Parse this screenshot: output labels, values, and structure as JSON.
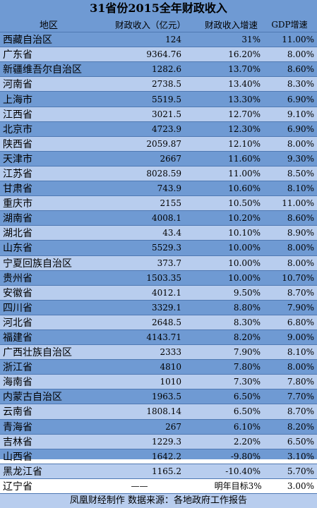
{
  "chart_data": {
    "type": "table",
    "title": "31省份2015全年财政收入",
    "columns": [
      "地区",
      "财政收入（亿元）",
      "财政收入增速",
      "GDP增速"
    ],
    "rows": [
      {
        "region": "西藏自治区",
        "revenue": "124",
        "growth": "31%",
        "gdp": "11.00%"
      },
      {
        "region": "广东省",
        "revenue": "9364.76",
        "growth": "16.20%",
        "gdp": "8.00%"
      },
      {
        "region": "新疆维吾尔自治区",
        "revenue": "1282.6",
        "growth": "13.70%",
        "gdp": "8.60%"
      },
      {
        "region": "河南省",
        "revenue": "2738.5",
        "growth": "13.40%",
        "gdp": "8.30%"
      },
      {
        "region": "上海市",
        "revenue": "5519.5",
        "growth": "13.30%",
        "gdp": "6.90%"
      },
      {
        "region": "江西省",
        "revenue": "3021.5",
        "growth": "12.70%",
        "gdp": "9.10%"
      },
      {
        "region": "北京市",
        "revenue": "4723.9",
        "growth": "12.30%",
        "gdp": "6.90%"
      },
      {
        "region": "陕西省",
        "revenue": "2059.87",
        "growth": "12.10%",
        "gdp": "8.00%"
      },
      {
        "region": "天津市",
        "revenue": "2667",
        "growth": "11.60%",
        "gdp": "9.30%"
      },
      {
        "region": "江苏省",
        "revenue": "8028.59",
        "growth": "11.00%",
        "gdp": "8.50%"
      },
      {
        "region": "甘肃省",
        "revenue": "743.9",
        "growth": "10.60%",
        "gdp": "8.10%"
      },
      {
        "region": "重庆市",
        "revenue": "2155",
        "growth": "10.50%",
        "gdp": "11.00%"
      },
      {
        "region": "湖南省",
        "revenue": "4008.1",
        "growth": "10.20%",
        "gdp": "8.60%"
      },
      {
        "region": "湖北省",
        "revenue": "43.4",
        "growth": "10.10%",
        "gdp": "8.90%"
      },
      {
        "region": "山东省",
        "revenue": "5529.3",
        "growth": "10.00%",
        "gdp": "8.00%"
      },
      {
        "region": "宁夏回族自治区",
        "revenue": "373.7",
        "growth": "10.00%",
        "gdp": "8.00%"
      },
      {
        "region": "贵州省",
        "revenue": "1503.35",
        "growth": "10.00%",
        "gdp": "10.70%"
      },
      {
        "region": "安徽省",
        "revenue": "4012.1",
        "growth": "9.50%",
        "gdp": "8.70%"
      },
      {
        "region": "四川省",
        "revenue": "3329.1",
        "growth": "8.80%",
        "gdp": "7.90%"
      },
      {
        "region": "河北省",
        "revenue": "2648.5",
        "growth": "8.30%",
        "gdp": "6.80%"
      },
      {
        "region": "福建省",
        "revenue": "4143.71",
        "growth": "8.20%",
        "gdp": "9.00%"
      },
      {
        "region": "广西壮族自治区",
        "revenue": "2333",
        "growth": "7.90%",
        "gdp": "8.10%"
      },
      {
        "region": "浙江省",
        "revenue": "4810",
        "growth": "7.80%",
        "gdp": "8.00%"
      },
      {
        "region": "海南省",
        "revenue": "1010",
        "growth": "7.30%",
        "gdp": "7.80%"
      },
      {
        "region": "内蒙古自治区",
        "revenue": "1963.5",
        "growth": "6.50%",
        "gdp": "7.70%"
      },
      {
        "region": "云南省",
        "revenue": "1808.14",
        "growth": "6.50%",
        "gdp": "8.70%"
      },
      {
        "region": "青海省",
        "revenue": "267",
        "growth": "6.10%",
        "gdp": "8.20%"
      },
      {
        "region": "吉林省",
        "revenue": "1229.3",
        "growth": "2.20%",
        "gdp": "6.50%"
      },
      {
        "region": "山西省",
        "revenue": "1642.2",
        "growth": "-9.80%",
        "gdp": "3.10%"
      },
      {
        "region": "黑龙江省",
        "revenue": "1165.2",
        "growth": "-10.40%",
        "gdp": "5.70%"
      }
    ],
    "last_row": {
      "region": "辽宁省",
      "revenue": "——",
      "growth": "明年目标3%",
      "gdp": "3.00%"
    },
    "footer": "凤凰财经制作  数据来源：各地政府工作报告"
  },
  "colors": {
    "row_dark": "#6f9ad3",
    "row_light": "#b8cdee",
    "border": "#4f79b3"
  }
}
